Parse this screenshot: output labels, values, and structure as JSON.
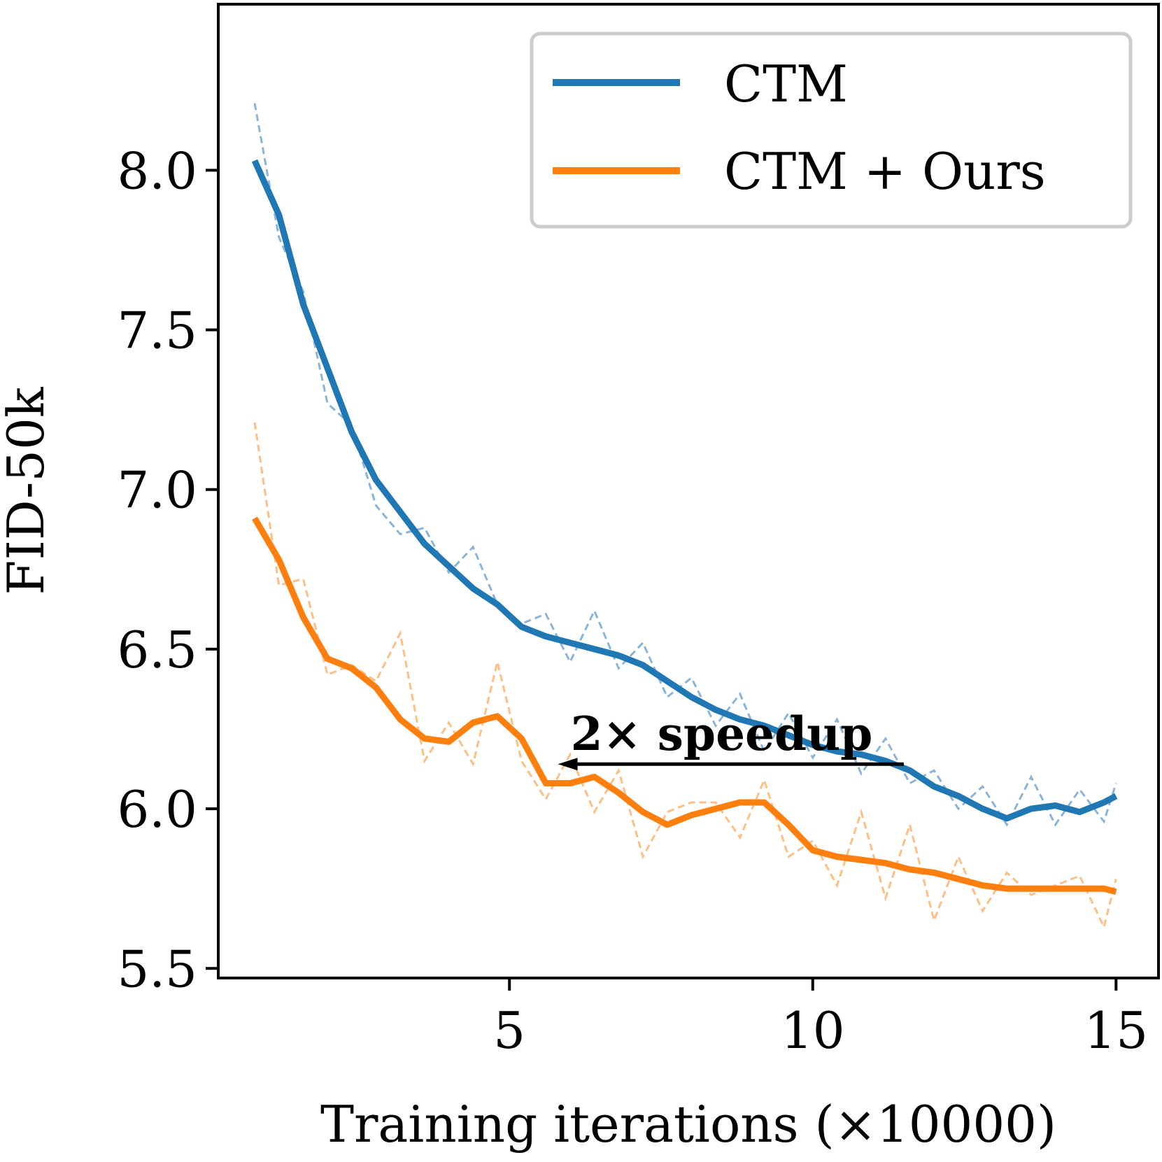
{
  "chart_data": {
    "type": "line",
    "title": "",
    "xlabel": "Training iterations (×10000)",
    "ylabel": "FID-50k",
    "xlim": [
      0.2,
      15.7
    ],
    "ylim": [
      5.47,
      8.52
    ],
    "xticks": [
      5,
      10,
      15
    ],
    "xtick_labels": [
      "5",
      "10",
      "15"
    ],
    "yticks": [
      5.5,
      6.0,
      6.5,
      7.0,
      7.5,
      8.0
    ],
    "ytick_labels": [
      "5.5",
      "6.0",
      "6.5",
      "7.0",
      "7.5",
      "8.0"
    ],
    "grid": false,
    "legend_position": "top-right",
    "series": [
      {
        "name": "CTM",
        "color": "#1f77b4",
        "raw_color": "#8ab5d8",
        "x": [
          0.8,
          1.2,
          1.6,
          2.0,
          2.4,
          2.8,
          3.2,
          3.6,
          4.0,
          4.4,
          4.8,
          5.2,
          5.6,
          6.0,
          6.4,
          6.8,
          7.2,
          7.6,
          8.0,
          8.4,
          8.8,
          9.2,
          9.6,
          10.0,
          10.4,
          10.8,
          11.2,
          11.6,
          12.0,
          12.4,
          12.8,
          13.2,
          13.6,
          14.0,
          14.4,
          14.8,
          15.0
        ],
        "smoothed": [
          8.03,
          7.86,
          7.58,
          7.38,
          7.18,
          7.03,
          6.93,
          6.83,
          6.76,
          6.69,
          6.64,
          6.57,
          6.54,
          6.52,
          6.5,
          6.48,
          6.45,
          6.4,
          6.35,
          6.31,
          6.28,
          6.26,
          6.23,
          6.2,
          6.18,
          6.17,
          6.15,
          6.12,
          6.07,
          6.04,
          6.0,
          5.97,
          6.0,
          6.01,
          5.99,
          6.02,
          6.04
        ],
        "raw": [
          8.21,
          7.79,
          7.62,
          7.27,
          7.2,
          6.95,
          6.86,
          6.88,
          6.74,
          6.82,
          6.64,
          6.58,
          6.61,
          6.46,
          6.62,
          6.44,
          6.52,
          6.35,
          6.41,
          6.26,
          6.36,
          6.18,
          6.3,
          6.16,
          6.28,
          6.11,
          6.22,
          6.08,
          6.12,
          6.0,
          6.07,
          5.95,
          6.1,
          5.95,
          6.06,
          5.96,
          6.08
        ]
      },
      {
        "name": "CTM + Ours",
        "color": "#ff7f0e",
        "raw_color": "#fdbf86",
        "x": [
          0.8,
          1.2,
          1.6,
          2.0,
          2.4,
          2.8,
          3.2,
          3.6,
          4.0,
          4.4,
          4.8,
          5.2,
          5.6,
          6.0,
          6.4,
          6.8,
          7.2,
          7.6,
          8.0,
          8.4,
          8.8,
          9.2,
          9.6,
          10.0,
          10.4,
          10.8,
          11.2,
          11.6,
          12.0,
          12.4,
          12.8,
          13.2,
          13.6,
          14.0,
          14.4,
          14.8,
          15.0
        ],
        "smoothed": [
          6.91,
          6.78,
          6.6,
          6.47,
          6.44,
          6.38,
          6.28,
          6.22,
          6.21,
          6.27,
          6.29,
          6.22,
          6.08,
          6.08,
          6.1,
          6.05,
          5.99,
          5.95,
          5.98,
          6.0,
          6.02,
          6.02,
          5.95,
          5.87,
          5.85,
          5.84,
          5.83,
          5.81,
          5.8,
          5.78,
          5.76,
          5.75,
          5.75,
          5.75,
          5.75,
          5.75,
          5.74
        ],
        "raw": [
          7.21,
          6.7,
          6.72,
          6.42,
          6.45,
          6.4,
          6.55,
          6.15,
          6.27,
          6.14,
          6.46,
          6.15,
          6.03,
          6.17,
          5.99,
          6.12,
          5.85,
          5.99,
          6.02,
          6.02,
          5.91,
          6.09,
          5.85,
          5.9,
          5.76,
          5.99,
          5.72,
          5.95,
          5.65,
          5.85,
          5.68,
          5.8,
          5.73,
          5.76,
          5.79,
          5.63,
          5.78
        ]
      }
    ],
    "annotation": {
      "text": "2× speedup",
      "arrow_from_x": 11.5,
      "arrow_to_x": 5.8,
      "arrow_y": 6.14
    }
  }
}
